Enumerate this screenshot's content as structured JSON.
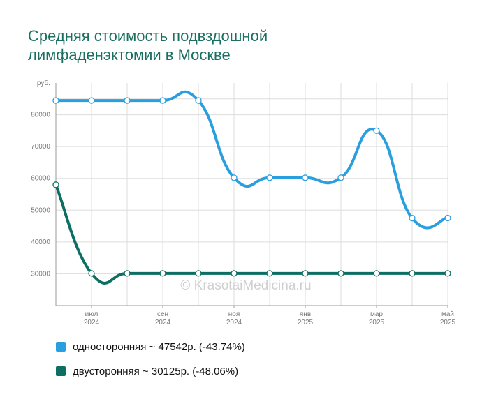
{
  "title": {
    "line1": "Средняя стоимость подвздошной",
    "line2": "лимфаденэктомии в Москве"
  },
  "watermark": "© KrasotaiMedicina.ru",
  "colors": {
    "series1": "#2a9fe0",
    "series2": "#0d6e63",
    "title": "#1a6f61",
    "grid": "#dddddd",
    "axis": "#999999"
  },
  "chart_data": {
    "type": "line",
    "y_unit": "руб.",
    "ylim": [
      20000,
      90000
    ],
    "yticks": [
      30000,
      40000,
      50000,
      60000,
      70000,
      80000
    ],
    "grid": true,
    "legend_position": "bottom-left",
    "x": [
      "2024-06",
      "2024-07",
      "2024-08",
      "2024-09",
      "2024-10",
      "2024-11",
      "2024-12",
      "2025-01",
      "2025-02",
      "2025-03",
      "2025-04",
      "2025-05"
    ],
    "xtick_labels": [
      {
        "index": 1,
        "month": "июл",
        "year": "2024"
      },
      {
        "index": 3,
        "month": "сен",
        "year": "2024"
      },
      {
        "index": 5,
        "month": "ноя",
        "year": "2024"
      },
      {
        "index": 7,
        "month": "янв",
        "year": "2025"
      },
      {
        "index": 9,
        "month": "мар",
        "year": "2025"
      },
      {
        "index": 11,
        "month": "май",
        "year": "2025"
      }
    ],
    "series": [
      {
        "name": "односторонняя",
        "legend": "односторонняя ~ 47542р. (-43.74%)",
        "color": "#2a9fe0",
        "values": [
          84500,
          84500,
          84500,
          84500,
          84500,
          60200,
          60200,
          60200,
          60200,
          75000,
          47500,
          47542
        ]
      },
      {
        "name": "двусторонняя",
        "legend": "двусторонняя ~ 30125р. (-48.06%)",
        "color": "#0d6e63",
        "values": [
          58000,
          30125,
          30125,
          30125,
          30125,
          30125,
          30125,
          30125,
          30125,
          30125,
          30125,
          30125
        ]
      }
    ]
  }
}
